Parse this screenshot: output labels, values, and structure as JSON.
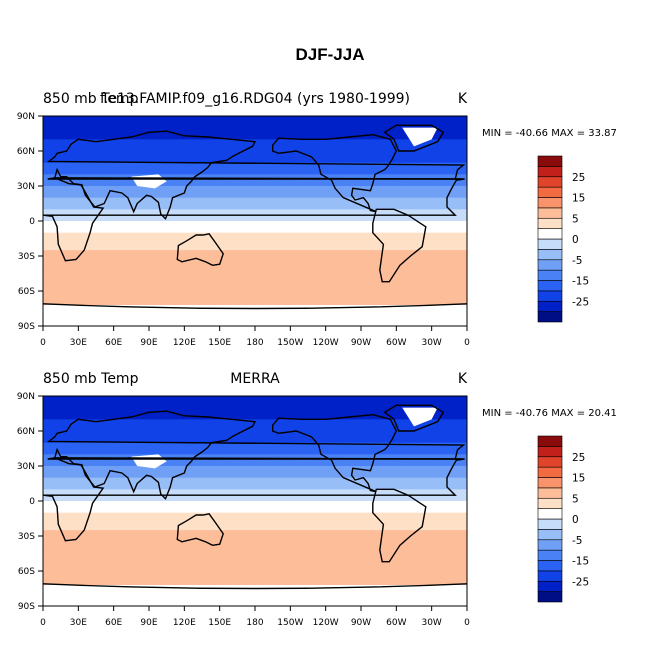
{
  "page_title": "DJF-JJA",
  "chart_data": [
    {
      "type": "heatmap",
      "left_label": "850 mb Temp",
      "center_label": "f.e13.FAMIP.f09_g16.RDG04 (yrs 1980-1999)",
      "unit_label": "K",
      "stats": {
        "min_label": "MIN =",
        "min": "-40.66",
        "max_label": "MAX =",
        "max": "33.87"
      },
      "x_ticks": [
        "0",
        "30E",
        "60E",
        "90E",
        "120E",
        "150E",
        "180",
        "150W",
        "120W",
        "90W",
        "60W",
        "30W",
        "0"
      ],
      "y_ticks": [
        "90N",
        "60N",
        "30N",
        "0",
        "30S",
        "60S",
        "90S"
      ],
      "xlim": [
        0,
        360
      ],
      "ylim": [
        -90,
        90
      ],
      "colorbar": {
        "levels": [
          -35,
          -30,
          -25,
          -20,
          -15,
          -10,
          -5,
          -2,
          0,
          2,
          5,
          10,
          15,
          20,
          25,
          30
        ],
        "tick_labels": [
          "25",
          "15",
          "5",
          "0",
          "-5",
          "-15",
          "-25"
        ]
      },
      "zonal_profile": {
        "lat": [
          90,
          75,
          60,
          45,
          30,
          15,
          0,
          -15,
          -30,
          -45,
          -60,
          -75,
          -90
        ],
        "value": [
          -28,
          -26,
          -24,
          -18,
          -9,
          -3,
          0,
          3,
          6,
          7,
          8,
          7,
          6
        ]
      }
    },
    {
      "type": "heatmap",
      "left_label": "850 mb Temp",
      "center_label": "MERRA",
      "unit_label": "K",
      "stats": {
        "min_label": "MIN =",
        "min": "-40.76",
        "max_label": "MAX =",
        "max": "20.41"
      },
      "x_ticks": [
        "0",
        "30E",
        "60E",
        "90E",
        "120E",
        "150E",
        "180",
        "150W",
        "120W",
        "90W",
        "60W",
        "30W",
        "0"
      ],
      "y_ticks": [
        "90N",
        "60N",
        "30N",
        "0",
        "30S",
        "60S",
        "90S"
      ],
      "xlim": [
        0,
        360
      ],
      "ylim": [
        -90,
        90
      ],
      "colorbar": {
        "levels": [
          -35,
          -30,
          -25,
          -20,
          -15,
          -10,
          -5,
          -2,
          0,
          2,
          5,
          10,
          15,
          20,
          25,
          30
        ],
        "tick_labels": [
          "25",
          "15",
          "5",
          "0",
          "-5",
          "-15",
          "-25"
        ]
      },
      "zonal_profile": {
        "lat": [
          90,
          75,
          60,
          45,
          30,
          15,
          0,
          -15,
          -30,
          -45,
          -60,
          -75,
          -90
        ],
        "value": [
          -27,
          -26,
          -24,
          -18,
          -9,
          -3,
          0,
          3,
          6,
          7,
          8,
          7,
          6
        ]
      }
    }
  ],
  "palette": [
    "#000e85",
    "#0020c8",
    "#1042e8",
    "#2a62f3",
    "#4a82f5",
    "#6fa0f6",
    "#98bef7",
    "#c6dcf9",
    "#ffffff",
    "#fde0c6",
    "#fdbd99",
    "#f9936b",
    "#f26a41",
    "#e0442a",
    "#c2201a",
    "#8a0b0b"
  ]
}
